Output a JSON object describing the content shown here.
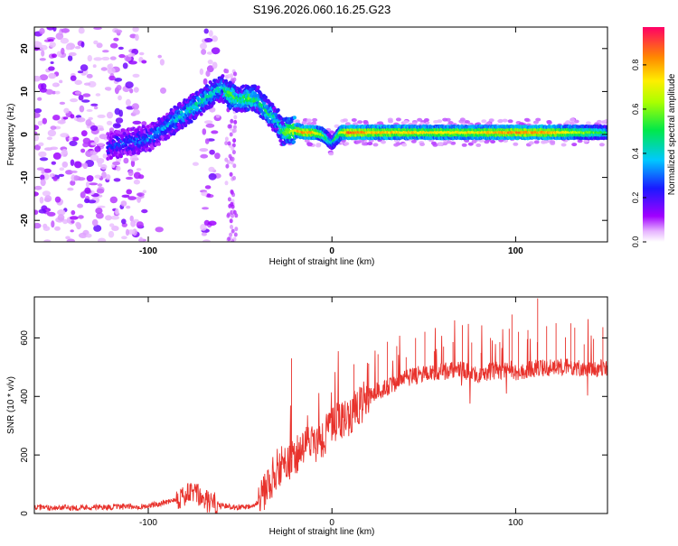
{
  "figure_title": "S196.2026.060.16.25.G23",
  "chart_data": [
    {
      "type": "heatmap",
      "title": "S196.2026.060.16.25.G23",
      "xlabel": "Height of straight line (km)",
      "ylabel": "Frequency (Hz)",
      "xlim": [
        -162,
        150
      ],
      "ylim": [
        -25,
        25
      ],
      "xticks": [
        -100,
        0,
        100
      ],
      "yticks": [
        -20,
        -10,
        0,
        10,
        20
      ],
      "colorbar": {
        "label": "Normalized spectral amplitude",
        "range": [
          0,
          1
        ],
        "ticks": [
          "0.0",
          "0.2",
          "0.4",
          "0.6",
          "0.8"
        ]
      },
      "ridge": {
        "description": "dominant spectral ridge (frequency vs height)",
        "x": [
          -120,
          -100,
          -90,
          -80,
          -70,
          -60,
          -55,
          -50,
          -45,
          -40,
          -35,
          -30,
          -27,
          -20,
          -15,
          -10,
          -5,
          0,
          5,
          10,
          20,
          50,
          80,
          100,
          120,
          150
        ],
        "y": [
          -2.5,
          -1,
          2,
          5,
          8,
          11,
          9,
          8,
          8.5,
          8,
          5,
          3.5,
          0.5,
          1,
          0.5,
          0.5,
          0,
          -2,
          0.5,
          0.5,
          0.5,
          0.5,
          0.5,
          0.5,
          0.5,
          0.5
        ],
        "amplitude": [
          0.25,
          0.3,
          0.35,
          0.4,
          0.45,
          0.4,
          0.6,
          0.45,
          0.55,
          0.45,
          0.5,
          0.4,
          0.5,
          0.75,
          0.85,
          0.8,
          0.6,
          0.4,
          0.65,
          0.9,
          0.8,
          0.75,
          0.75,
          0.85,
          0.8,
          0.5
        ]
      }
    },
    {
      "type": "line",
      "xlabel": "Height of straight line (km)",
      "ylabel": "SNR (10 * v/v)",
      "xlim": [
        -162,
        150
      ],
      "ylim": [
        0,
        740
      ],
      "xticks": [
        -100,
        0,
        100
      ],
      "yticks": [
        0,
        200,
        400,
        600
      ],
      "series": [
        {
          "name": "SNR",
          "color": "#e8322c",
          "x": [
            -162,
            -140,
            -120,
            -100,
            -90,
            -80,
            -75,
            -70,
            -60,
            -50,
            -45,
            -40,
            -35,
            -30,
            -25,
            -20,
            -15,
            -10,
            -5,
            0,
            5,
            10,
            15,
            20,
            25,
            30,
            40,
            50,
            60,
            70,
            80,
            90,
            100,
            110,
            120,
            130,
            140,
            150
          ],
          "y": [
            20,
            20,
            22,
            25,
            40,
            60,
            75,
            45,
            25,
            22,
            25,
            40,
            90,
            150,
            170,
            200,
            230,
            240,
            260,
            300,
            320,
            330,
            370,
            400,
            420,
            430,
            460,
            480,
            485,
            490,
            475,
            490,
            480,
            495,
            500,
            505,
            490,
            500
          ]
        }
      ],
      "spikes": [
        {
          "x": -22,
          "y": 530
        },
        {
          "x": 12,
          "y": 510
        },
        {
          "x": 112,
          "y": 735
        },
        {
          "x": 98,
          "y": 680
        },
        {
          "x": 130,
          "y": 650
        }
      ]
    }
  ]
}
